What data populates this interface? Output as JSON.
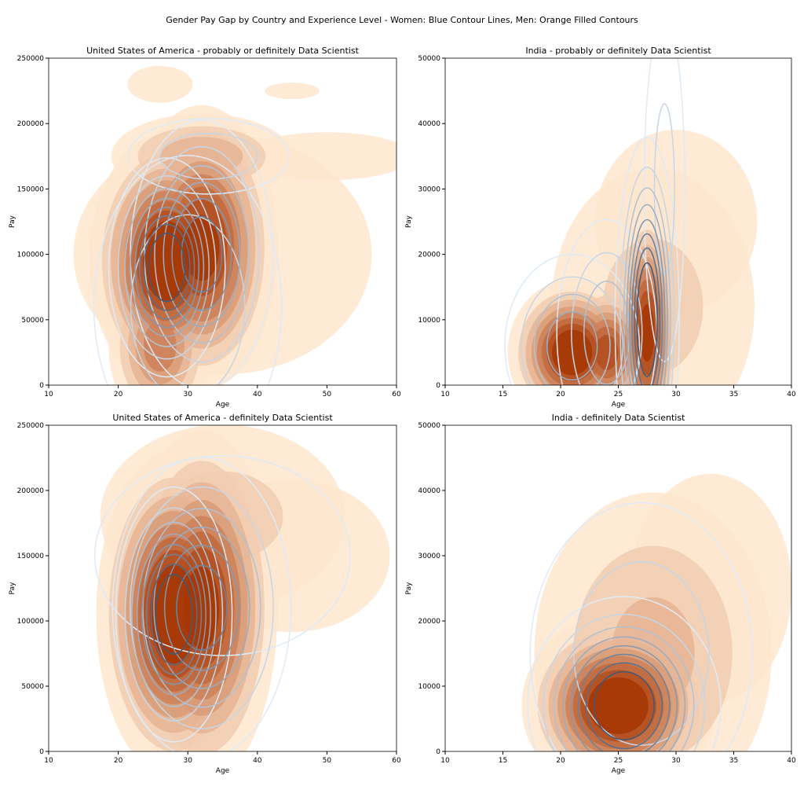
{
  "suptitle": "Gender Pay Gap by Country and Experience Level - Women: Blue Contour Lines, Men: Orange Filled Contours",
  "colors": {
    "men_light": "#fee6ce",
    "men_dark": "#a63603",
    "women_light": "#deebf7",
    "women_dark": "#3f5a7a"
  },
  "chart_data": [
    {
      "type": "contour",
      "title": "United States of America - probably or definitely Data Scientist",
      "xlabel": "Age",
      "ylabel": "Pay",
      "xlim": [
        10,
        60
      ],
      "ylim": [
        0,
        250000
      ],
      "xticks": [
        10,
        20,
        30,
        40,
        50,
        60
      ],
      "yticks": [
        0,
        50000,
        100000,
        150000,
        200000,
        250000
      ],
      "men_peaks": [
        [
          27,
          95000,
          4,
          35000,
          1
        ],
        [
          32,
          105000,
          4,
          40000,
          0.9
        ],
        [
          26,
          30000,
          3,
          25000,
          0.6
        ],
        [
          32,
          175000,
          6,
          15000,
          0.4
        ],
        [
          50,
          175000,
          8,
          12000,
          0.2
        ],
        [
          26,
          230000,
          4,
          12000,
          0.15
        ],
        [
          45,
          225000,
          5,
          8000,
          0.12
        ],
        [
          35,
          100000,
          14,
          60000,
          0.2
        ]
      ],
      "women_peaks": [
        [
          27,
          90000,
          3,
          30000,
          1
        ],
        [
          32,
          100000,
          4,
          40000,
          0.7
        ],
        [
          33,
          175000,
          6,
          15000,
          0.3
        ],
        [
          30,
          60000,
          7,
          60000,
          0.3
        ]
      ]
    },
    {
      "type": "contour",
      "title": "India - probably or definitely Data Scientist",
      "xlabel": "Age",
      "ylabel": "Pay",
      "xlim": [
        10,
        40
      ],
      "ylim": [
        0,
        50000
      ],
      "xticks": [
        10,
        15,
        20,
        25,
        30,
        35,
        40
      ],
      "yticks": [
        0,
        10000,
        20000,
        30000,
        40000,
        50000
      ],
      "men_peaks": [
        [
          21,
          5000,
          2,
          4000,
          1
        ],
        [
          24,
          5000,
          1.5,
          4000,
          0.8
        ],
        [
          27.5,
          8000,
          1,
          7000,
          0.9
        ],
        [
          28,
          12000,
          5,
          12000,
          0.25
        ],
        [
          30,
          25000,
          6,
          12000,
          0.15
        ]
      ],
      "women_peaks": [
        [
          27.5,
          10000,
          1,
          10000,
          1
        ],
        [
          21,
          6000,
          2.5,
          6000,
          0.5
        ],
        [
          29,
          30000,
          1,
          15000,
          0.25
        ],
        [
          24,
          8000,
          2,
          8000,
          0.4
        ]
      ]
    },
    {
      "type": "contour",
      "title": "United States of America - definitely Data Scientist",
      "xlabel": "Age",
      "ylabel": "Pay",
      "xlim": [
        10,
        60
      ],
      "ylim": [
        0,
        250000
      ],
      "xticks": [
        10,
        20,
        30,
        40,
        50,
        60
      ],
      "yticks": [
        0,
        50000,
        100000,
        150000,
        200000,
        250000
      ],
      "men_peaks": [
        [
          28,
          105000,
          4,
          45000,
          1
        ],
        [
          32,
          110000,
          4,
          50000,
          0.9
        ],
        [
          35,
          180000,
          10,
          40000,
          0.25
        ],
        [
          45,
          150000,
          12,
          50000,
          0.15
        ]
      ],
      "women_peaks": [
        [
          28,
          105000,
          3,
          35000,
          1
        ],
        [
          32,
          110000,
          5,
          45000,
          0.7
        ],
        [
          35,
          150000,
          12,
          50000,
          0.2
        ]
      ]
    },
    {
      "type": "contour",
      "title": "India - definitely Data Scientist",
      "xlabel": "Age",
      "ylabel": "Pay",
      "xlim": [
        10,
        40
      ],
      "ylim": [
        0,
        50000
      ],
      "xticks": [
        10,
        15,
        20,
        25,
        30,
        35,
        40
      ],
      "yticks": [
        0,
        10000,
        20000,
        30000,
        40000,
        50000
      ],
      "men_peaks": [
        [
          25,
          7000,
          3,
          5000,
          1
        ],
        [
          28,
          15000,
          5,
          12000,
          0.35
        ],
        [
          33,
          25000,
          6,
          15000,
          0.15
        ]
      ],
      "women_peaks": [
        [
          25.5,
          7000,
          3,
          6000,
          1
        ],
        [
          27,
          15000,
          5,
          12000,
          0.3
        ],
        [
          30,
          30000,
          5,
          12000,
          0.1
        ]
      ]
    }
  ]
}
